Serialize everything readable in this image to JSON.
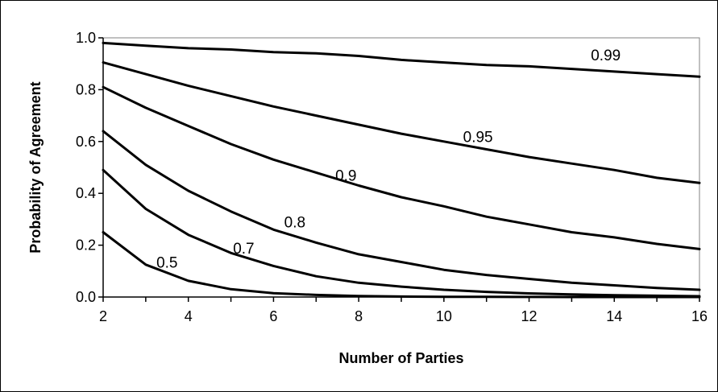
{
  "chart_data": {
    "type": "line",
    "title": "",
    "xlabel": "Number of Parties",
    "ylabel": "Probability of Agreement",
    "xlim": [
      2,
      16
    ],
    "ylim": [
      0,
      1
    ],
    "xticks": [
      "2",
      "4",
      "6",
      "8",
      "10",
      "12",
      "14",
      "16"
    ],
    "yticks": [
      "0.0",
      "0.2",
      "0.4",
      "0.6",
      "0.8",
      "1.0"
    ],
    "grid": false,
    "legend": "none",
    "colors": {
      "line": "#000000",
      "plot_border": "#808080",
      "background": "#ffffff"
    },
    "x": [
      2,
      3,
      4,
      5,
      6,
      7,
      8,
      9,
      10,
      11,
      12,
      13,
      14,
      15,
      16
    ],
    "series": [
      {
        "name": "0.99",
        "values": [
          0.98,
          0.97,
          0.96,
          0.955,
          0.945,
          0.94,
          0.93,
          0.915,
          0.905,
          0.895,
          0.89,
          0.88,
          0.87,
          0.86,
          0.85
        ]
      },
      {
        "name": "0.95",
        "values": [
          0.905,
          0.86,
          0.815,
          0.775,
          0.735,
          0.7,
          0.665,
          0.63,
          0.6,
          0.57,
          0.54,
          0.515,
          0.49,
          0.46,
          0.44
        ]
      },
      {
        "name": "0.9",
        "values": [
          0.81,
          0.73,
          0.66,
          0.59,
          0.53,
          0.48,
          0.43,
          0.385,
          0.35,
          0.31,
          0.28,
          0.25,
          0.23,
          0.205,
          0.185
        ]
      },
      {
        "name": "0.8",
        "values": [
          0.64,
          0.51,
          0.41,
          0.33,
          0.26,
          0.21,
          0.165,
          0.135,
          0.105,
          0.085,
          0.07,
          0.055,
          0.045,
          0.035,
          0.028
        ]
      },
      {
        "name": "0.7",
        "values": [
          0.49,
          0.34,
          0.24,
          0.17,
          0.12,
          0.08,
          0.055,
          0.04,
          0.028,
          0.02,
          0.014,
          0.01,
          0.007,
          0.005,
          0.003
        ]
      },
      {
        "name": "0.5",
        "values": [
          0.25,
          0.125,
          0.0625,
          0.03,
          0.015,
          0.008,
          0.004,
          0.002,
          0.001,
          0.0005,
          0.0002,
          0.0001,
          0.0001,
          0.0,
          0.0
        ]
      }
    ],
    "curve_labels": [
      {
        "text": "0.99",
        "x": 13.8,
        "y": 0.935
      },
      {
        "text": "0.95",
        "x": 10.8,
        "y": 0.62
      },
      {
        "text": "0.9",
        "x": 7.7,
        "y": 0.47
      },
      {
        "text": "0.8",
        "x": 6.5,
        "y": 0.29
      },
      {
        "text": "0.7",
        "x": 5.3,
        "y": 0.19
      },
      {
        "text": "0.5",
        "x": 3.5,
        "y": 0.135
      }
    ]
  }
}
